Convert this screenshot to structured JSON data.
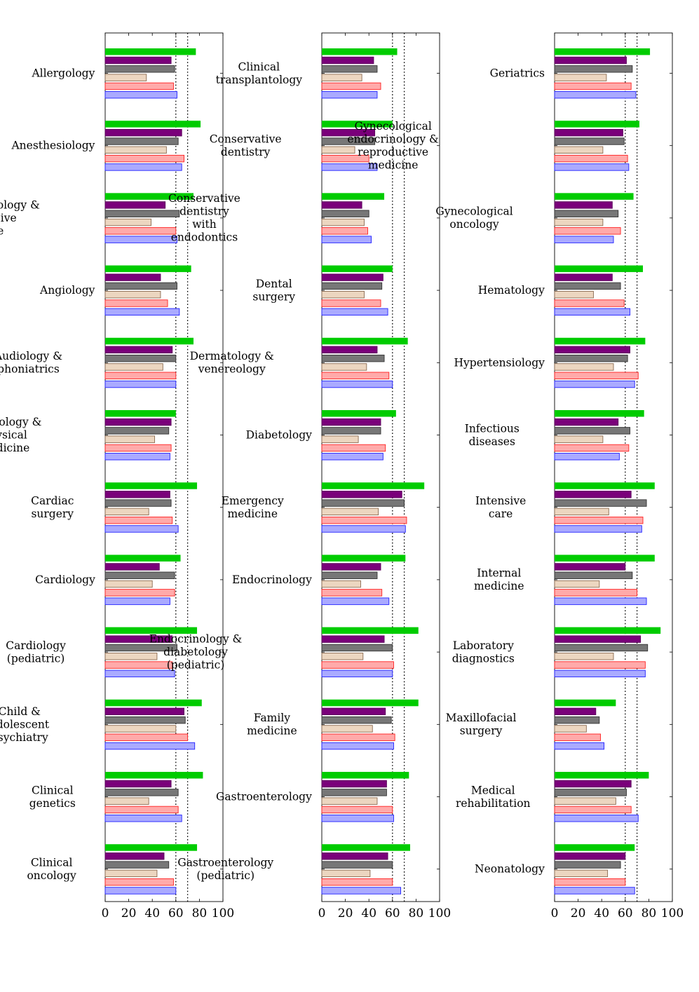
{
  "chart_data": [
    {
      "type": "bar",
      "orientation": "horizontal",
      "xlim": [
        0,
        100
      ],
      "xticks": [
        0,
        20,
        40,
        60,
        80,
        100
      ],
      "reference_lines": [
        60,
        70
      ],
      "categories": [
        "Allergology",
        "Anesthesiology",
        "Anesthesiology & intensive care",
        "Angiology",
        "Audiology & phoniatrics",
        "Balneology & physical medicine",
        "Cardiac surgery",
        "Cardiology",
        "Cardiology (pediatric)",
        "Child & adolescent psychiatry",
        "Clinical genetics",
        "Clinical oncology"
      ],
      "series": [
        {
          "color": "#00cc00",
          "values": [
            77,
            81,
            75,
            73,
            75,
            60,
            78,
            64,
            78,
            82,
            83,
            78
          ]
        },
        {
          "color": "#7a007a",
          "values": [
            56,
            65,
            51,
            47,
            57,
            56,
            55,
            46,
            57,
            67,
            56,
            50
          ]
        },
        {
          "color": "#777777",
          "values": [
            59,
            62,
            63,
            61,
            60,
            54,
            56,
            59,
            61,
            68,
            62,
            54
          ]
        },
        {
          "color": "#ecd6c0",
          "values": [
            35,
            52,
            39,
            47,
            49,
            42,
            37,
            40,
            44,
            60,
            37,
            44
          ]
        },
        {
          "color": "#ffaaaa",
          "values": [
            58,
            67,
            60,
            53,
            60,
            56,
            57,
            59,
            57,
            70,
            62,
            58
          ]
        },
        {
          "color": "#aaaaff",
          "values": [
            61,
            65,
            61,
            63,
            60,
            55,
            62,
            55,
            59,
            76,
            65,
            60
          ]
        }
      ]
    },
    {
      "type": "bar",
      "orientation": "horizontal",
      "xlim": [
        0,
        100
      ],
      "xticks": [
        0,
        20,
        40,
        60,
        80,
        100
      ],
      "reference_lines": [
        60,
        70
      ],
      "categories": [
        "Clinical transplantology",
        "Conservative dentistry",
        "Conservative dentistry with endodontics",
        "Dental surgery",
        "Dermatology & venereology",
        "Diabetology",
        "Emergency medicine",
        "Endocrinology",
        "Endocrinology & diabetology (pediatric)",
        "Family medicine",
        "Gastroenterology",
        "Gastroenterology (pediatric)"
      ],
      "series": [
        {
          "color": "#00cc00",
          "values": [
            64,
            60,
            53,
            60,
            73,
            63,
            87,
            71,
            82,
            82,
            74,
            75
          ]
        },
        {
          "color": "#7a007a",
          "values": [
            44,
            45,
            34,
            52,
            47,
            50,
            68,
            50,
            53,
            54,
            55,
            56
          ]
        },
        {
          "color": "#777777",
          "values": [
            47,
            45,
            40,
            51,
            53,
            50,
            70,
            47,
            60,
            59,
            55,
            60
          ]
        },
        {
          "color": "#ecd6c0",
          "values": [
            34,
            28,
            36,
            36,
            38,
            31,
            48,
            33,
            35,
            43,
            47,
            41
          ]
        },
        {
          "color": "#ffaaaa",
          "values": [
            50,
            40,
            39,
            50,
            57,
            54,
            72,
            51,
            61,
            62,
            60,
            60
          ]
        },
        {
          "color": "#aaaaff",
          "values": [
            47,
            47,
            42,
            56,
            60,
            52,
            71,
            57,
            60,
            61,
            61,
            67
          ]
        }
      ]
    },
    {
      "type": "bar",
      "orientation": "horizontal",
      "xlim": [
        0,
        100
      ],
      "xticks": [
        0,
        20,
        40,
        60,
        80,
        100
      ],
      "reference_lines": [
        60,
        70
      ],
      "categories": [
        "Geriatrics",
        "Gynecological endocrinology & reproductive medicine",
        "Gynecological oncology",
        "Hematology",
        "Hypertensiology",
        "Infectious diseases",
        "Intensive care",
        "Internal medicine",
        "Laboratory diagnostics",
        "Maxillofacial surgery",
        "Medical rehabilitation",
        "Neonatology"
      ],
      "series": [
        {
          "color": "#00cc00",
          "values": [
            81,
            72,
            67,
            75,
            77,
            76,
            85,
            85,
            90,
            52,
            80,
            68
          ]
        },
        {
          "color": "#7a007a",
          "values": [
            61,
            58,
            49,
            49,
            64,
            54,
            65,
            60,
            73,
            35,
            65,
            60
          ]
        },
        {
          "color": "#777777",
          "values": [
            66,
            59,
            54,
            56,
            62,
            64,
            78,
            66,
            79,
            38,
            61,
            56
          ]
        },
        {
          "color": "#ecd6c0",
          "values": [
            44,
            41,
            41,
            33,
            50,
            41,
            46,
            38,
            50,
            27,
            52,
            45
          ]
        },
        {
          "color": "#ffaaaa",
          "values": [
            65,
            62,
            56,
            59,
            71,
            63,
            75,
            70,
            77,
            39,
            65,
            60
          ]
        },
        {
          "color": "#aaaaff",
          "values": [
            69,
            63,
            50,
            64,
            68,
            55,
            74,
            78,
            77,
            42,
            71,
            68
          ]
        }
      ]
    }
  ]
}
